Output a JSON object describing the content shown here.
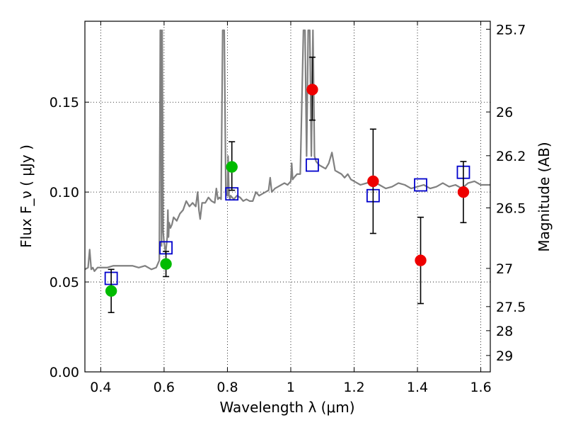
{
  "chart_data": {
    "type": "scatter",
    "xlabel": "Wavelength  λ (μm)",
    "ylabel": "Flux  F_ν  ( μJy )",
    "ylabel_right": "Magnitude (AB)",
    "xlim": [
      0.35,
      1.63
    ],
    "ylim": [
      0.0,
      0.195
    ],
    "grid": true,
    "x_ticks": [
      {
        "value": 0.4,
        "label": "0.4"
      },
      {
        "value": 0.6,
        "label": "0.6"
      },
      {
        "value": 0.8,
        "label": "0.8"
      },
      {
        "value": 1.0,
        "label": "1"
      },
      {
        "value": 1.2,
        "label": "1.2"
      },
      {
        "value": 1.4,
        "label": "1.4"
      },
      {
        "value": 1.6,
        "label": "1.6"
      }
    ],
    "y_ticks": [
      {
        "value": 0.0,
        "label": "0.00"
      },
      {
        "value": 0.05,
        "label": "0.05"
      },
      {
        "value": 0.1,
        "label": "0.10"
      },
      {
        "value": 0.15,
        "label": "0.15"
      }
    ],
    "right_ticks": [
      {
        "value": 25.7,
        "label": "25.7"
      },
      {
        "value": 26.0,
        "label": "26"
      },
      {
        "value": 26.2,
        "label": "26.2"
      },
      {
        "value": 26.5,
        "label": "26.5"
      },
      {
        "value": 27.0,
        "label": "27"
      },
      {
        "value": 27.5,
        "label": "27.5"
      },
      {
        "value": 28.0,
        "label": "28"
      },
      {
        "value": 29.0,
        "label": "29"
      }
    ],
    "series": [
      {
        "kind": "line",
        "color": "#808080",
        "x": [
          0.35,
          0.36,
          0.365,
          0.37,
          0.375,
          0.38,
          0.39,
          0.4,
          0.42,
          0.44,
          0.46,
          0.48,
          0.5,
          0.52,
          0.54,
          0.56,
          0.575,
          0.585,
          0.588,
          0.59,
          0.592,
          0.594,
          0.597,
          0.6,
          0.605,
          0.61,
          0.612,
          0.614,
          0.616,
          0.62,
          0.625,
          0.63,
          0.64,
          0.65,
          0.66,
          0.67,
          0.68,
          0.69,
          0.7,
          0.706,
          0.71,
          0.714,
          0.72,
          0.73,
          0.74,
          0.75,
          0.76,
          0.765,
          0.77,
          0.775,
          0.78,
          0.785,
          0.79,
          0.795,
          0.8,
          0.802,
          0.805,
          0.808,
          0.81,
          0.815,
          0.82,
          0.83,
          0.84,
          0.85,
          0.86,
          0.87,
          0.88,
          0.89,
          0.9,
          0.91,
          0.92,
          0.93,
          0.935,
          0.94,
          0.95,
          0.96,
          0.97,
          0.98,
          0.99,
          1.0,
          1.003,
          1.006,
          1.01,
          1.02,
          1.03,
          1.04,
          1.045,
          1.05,
          1.055,
          1.06,
          1.065,
          1.07,
          1.075,
          1.08,
          1.09,
          1.1,
          1.11,
          1.12,
          1.13,
          1.14,
          1.15,
          1.16,
          1.17,
          1.18,
          1.19,
          1.2,
          1.22,
          1.24,
          1.26,
          1.28,
          1.3,
          1.32,
          1.34,
          1.36,
          1.38,
          1.4,
          1.42,
          1.44,
          1.46,
          1.48,
          1.5,
          1.52,
          1.54,
          1.56,
          1.58,
          1.6,
          1.62,
          1.63
        ],
        "y": [
          0.057,
          0.058,
          0.068,
          0.057,
          0.058,
          0.056,
          0.058,
          0.058,
          0.058,
          0.059,
          0.059,
          0.059,
          0.059,
          0.058,
          0.059,
          0.057,
          0.058,
          0.062,
          0.19,
          0.19,
          0.07,
          0.19,
          0.078,
          0.072,
          0.066,
          0.075,
          0.09,
          0.075,
          0.083,
          0.08,
          0.082,
          0.086,
          0.084,
          0.088,
          0.09,
          0.095,
          0.092,
          0.094,
          0.092,
          0.1,
          0.09,
          0.085,
          0.094,
          0.094,
          0.097,
          0.095,
          0.094,
          0.102,
          0.096,
          0.097,
          0.096,
          0.19,
          0.19,
          0.1,
          0.098,
          0.12,
          0.098,
          0.096,
          0.098,
          0.097,
          0.096,
          0.098,
          0.097,
          0.095,
          0.096,
          0.095,
          0.095,
          0.1,
          0.098,
          0.099,
          0.1,
          0.101,
          0.108,
          0.1,
          0.102,
          0.103,
          0.104,
          0.105,
          0.104,
          0.106,
          0.116,
          0.107,
          0.108,
          0.11,
          0.11,
          0.19,
          0.19,
          0.12,
          0.19,
          0.19,
          0.12,
          0.19,
          0.12,
          0.117,
          0.115,
          0.114,
          0.113,
          0.116,
          0.122,
          0.112,
          0.111,
          0.11,
          0.108,
          0.11,
          0.107,
          0.106,
          0.104,
          0.105,
          0.106,
          0.104,
          0.102,
          0.103,
          0.105,
          0.104,
          0.102,
          0.103,
          0.104,
          0.102,
          0.103,
          0.105,
          0.103,
          0.104,
          0.102,
          0.105,
          0.106,
          0.104,
          0.104,
          0.104
        ]
      },
      {
        "kind": "open-square",
        "color": "#0000cc",
        "x": [
          0.433,
          0.606,
          0.814,
          1.068,
          1.26,
          1.41,
          1.545
        ],
        "y": [
          0.052,
          0.069,
          0.099,
          0.115,
          0.098,
          0.104,
          0.111
        ]
      },
      {
        "kind": "filled-circle",
        "color": "#00bb00",
        "x": [
          0.433,
          0.606,
          0.814
        ],
        "y": [
          0.045,
          0.06,
          0.114
        ],
        "err_low": [
          0.033,
          0.053,
          0.101
        ],
        "err_high": [
          0.057,
          0.067,
          0.128
        ]
      },
      {
        "kind": "filled-circle",
        "color": "#ee0000",
        "x": [
          1.068,
          1.26,
          1.41,
          1.545
        ],
        "y": [
          0.157,
          0.106,
          0.062,
          0.1
        ],
        "err_low": [
          0.14,
          0.077,
          0.038,
          0.083
        ],
        "err_high": [
          0.175,
          0.135,
          0.086,
          0.117
        ]
      }
    ]
  }
}
